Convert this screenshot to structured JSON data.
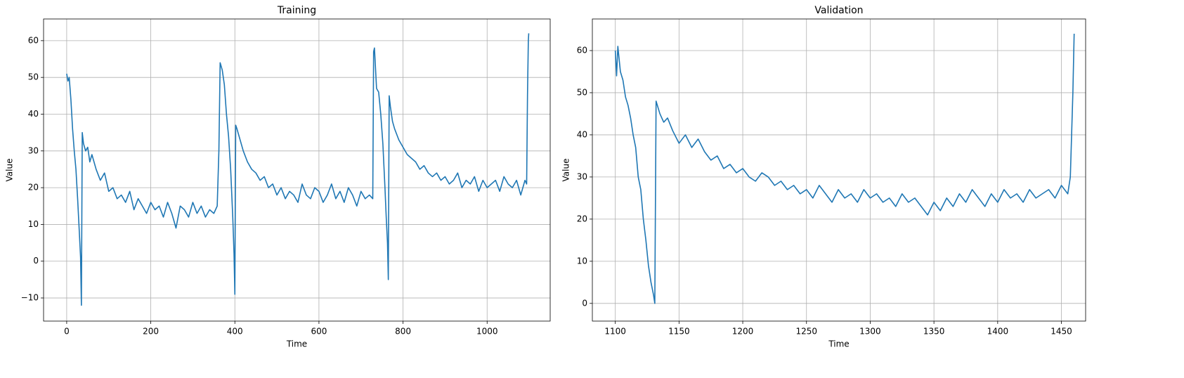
{
  "chart_data": [
    {
      "type": "line",
      "title": "Training",
      "xlabel": "Time",
      "ylabel": "Value",
      "color": "#1f77b4",
      "grid": true,
      "xlim": [
        -55,
        1150
      ],
      "xticks": [
        0,
        200,
        400,
        600,
        800,
        1000
      ],
      "ylim": [
        -16.3,
        65.9
      ],
      "yticks": [
        {
          "value": -10,
          "label": "−10"
        },
        0,
        10,
        20,
        30,
        40,
        50,
        60
      ],
      "x": [
        0,
        3,
        6,
        10,
        14,
        18,
        22,
        26,
        30,
        33,
        35,
        37,
        40,
        45,
        50,
        55,
        60,
        70,
        80,
        90,
        100,
        110,
        120,
        130,
        140,
        150,
        160,
        170,
        180,
        190,
        200,
        210,
        220,
        230,
        240,
        250,
        260,
        270,
        280,
        290,
        300,
        310,
        320,
        330,
        340,
        350,
        358,
        362,
        365,
        370,
        375,
        380,
        385,
        390,
        395,
        398,
        400,
        402,
        405,
        410,
        420,
        430,
        440,
        450,
        460,
        470,
        480,
        490,
        500,
        510,
        520,
        530,
        540,
        550,
        560,
        570,
        580,
        590,
        600,
        610,
        620,
        630,
        640,
        650,
        660,
        670,
        680,
        690,
        700,
        710,
        720,
        728,
        730,
        732,
        737,
        742,
        747,
        752,
        757,
        760,
        763,
        765,
        767,
        770,
        775,
        780,
        790,
        800,
        810,
        820,
        830,
        840,
        850,
        860,
        870,
        880,
        890,
        900,
        910,
        920,
        930,
        940,
        950,
        960,
        970,
        980,
        990,
        1000,
        1010,
        1020,
        1030,
        1040,
        1050,
        1060,
        1070,
        1080,
        1090,
        1094,
        1096,
        1098,
        1099
      ],
      "values": [
        51,
        49,
        50,
        44,
        36,
        30,
        25,
        17,
        8,
        1,
        -12,
        35,
        32,
        30,
        31,
        27,
        29,
        25,
        22,
        24,
        19,
        20,
        17,
        18,
        16,
        19,
        14,
        17,
        15,
        13,
        16,
        14,
        15,
        12,
        16,
        13,
        9,
        15,
        14,
        12,
        16,
        13,
        15,
        12,
        14,
        13,
        15,
        30,
        54,
        52,
        48,
        40,
        34,
        25,
        12,
        2,
        -9,
        37,
        36,
        34,
        30,
        27,
        25,
        24,
        22,
        23,
        20,
        21,
        18,
        20,
        17,
        19,
        18,
        16,
        21,
        18,
        17,
        20,
        19,
        16,
        18,
        21,
        17,
        19,
        16,
        20,
        18,
        15,
        19,
        17,
        18,
        17,
        57,
        58,
        47,
        46,
        40,
        32,
        20,
        12,
        5,
        -5,
        45,
        42,
        38,
        36,
        33,
        31,
        29,
        28,
        27,
        25,
        26,
        24,
        23,
        24,
        22,
        23,
        21,
        22,
        24,
        20,
        22,
        21,
        23,
        19,
        22,
        20,
        21,
        22,
        19,
        23,
        21,
        20,
        22,
        18,
        22,
        21,
        45,
        60,
        62
      ]
    },
    {
      "type": "line",
      "title": "Validation",
      "xlabel": "Time",
      "ylabel": "Value",
      "color": "#1f77b4",
      "grid": true,
      "xlim": [
        1082,
        1469
      ],
      "xticks": [
        1100,
        1150,
        1200,
        1250,
        1300,
        1350,
        1400,
        1450
      ],
      "ylim": [
        -4.2,
        67.5
      ],
      "yticks": [
        0,
        10,
        20,
        30,
        40,
        50,
        60
      ],
      "x": [
        1100,
        1101,
        1102,
        1104,
        1106,
        1108,
        1110,
        1112,
        1114,
        1116,
        1118,
        1120,
        1122,
        1124,
        1126,
        1128,
        1130,
        1131,
        1132,
        1135,
        1138,
        1141,
        1145,
        1150,
        1155,
        1160,
        1165,
        1170,
        1175,
        1180,
        1185,
        1190,
        1195,
        1200,
        1205,
        1210,
        1215,
        1220,
        1225,
        1230,
        1235,
        1240,
        1245,
        1250,
        1255,
        1260,
        1265,
        1270,
        1275,
        1280,
        1285,
        1290,
        1295,
        1300,
        1305,
        1310,
        1315,
        1320,
        1325,
        1330,
        1335,
        1340,
        1345,
        1350,
        1355,
        1360,
        1365,
        1370,
        1375,
        1380,
        1385,
        1390,
        1395,
        1400,
        1405,
        1410,
        1415,
        1420,
        1425,
        1430,
        1435,
        1440,
        1445,
        1450,
        1455,
        1457,
        1459,
        1460
      ],
      "values": [
        60,
        54,
        61,
        55,
        53,
        49,
        47,
        44,
        40,
        37,
        30,
        27,
        20,
        15,
        9,
        5,
        2,
        0,
        48,
        45,
        43,
        44,
        41,
        38,
        40,
        37,
        39,
        36,
        34,
        35,
        32,
        33,
        31,
        32,
        30,
        29,
        31,
        30,
        28,
        29,
        27,
        28,
        26,
        27,
        25,
        28,
        26,
        24,
        27,
        25,
        26,
        24,
        27,
        25,
        26,
        24,
        25,
        23,
        26,
        24,
        25,
        23,
        21,
        24,
        22,
        25,
        23,
        26,
        24,
        27,
        25,
        23,
        26,
        24,
        27,
        25,
        26,
        24,
        27,
        25,
        26,
        27,
        25,
        28,
        26,
        30,
        50,
        64
      ]
    }
  ]
}
